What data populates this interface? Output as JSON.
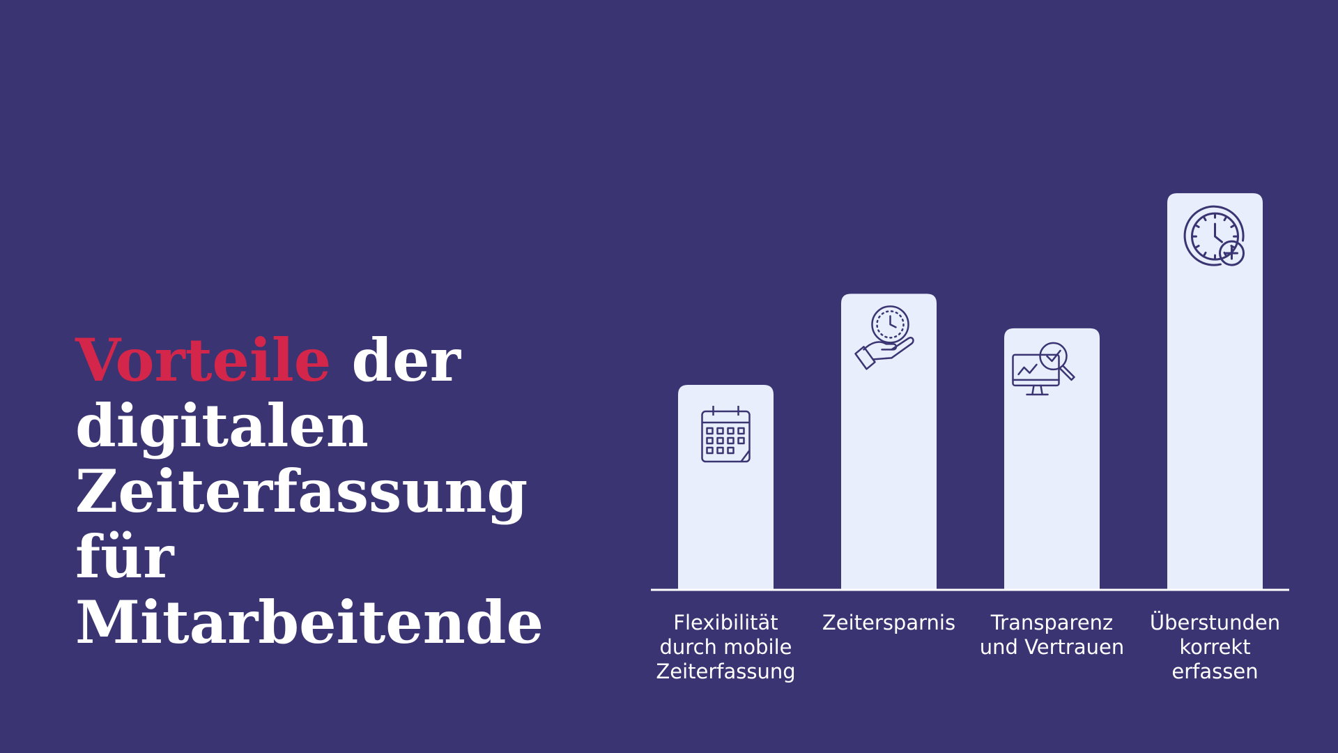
{
  "title": {
    "highlight": "Vorteile",
    "rest": " der digitalen Zeiterfassung für Mitarbeitende"
  },
  "colors": {
    "background": "#3a3473",
    "accent": "#d4264a",
    "bar": "#e8eefb",
    "icon": "#3a3473",
    "text": "#ffffff"
  },
  "chart_data": {
    "type": "bar",
    "categories": [
      "Flexibilität\ndurch mobile\nZeiterfassung",
      "Zeitersparnis",
      "Transparenz\nund Vertrauen",
      "Überstunden\nkorrekt\nerfassen"
    ],
    "values": [
      32.5,
      47,
      41.5,
      63
    ],
    "ylim": [
      0,
      70
    ],
    "grid": false,
    "icons": [
      "calendar-icon",
      "hand-clock-icon",
      "monitor-magnifier-icon",
      "clock-plus-icon"
    ]
  }
}
